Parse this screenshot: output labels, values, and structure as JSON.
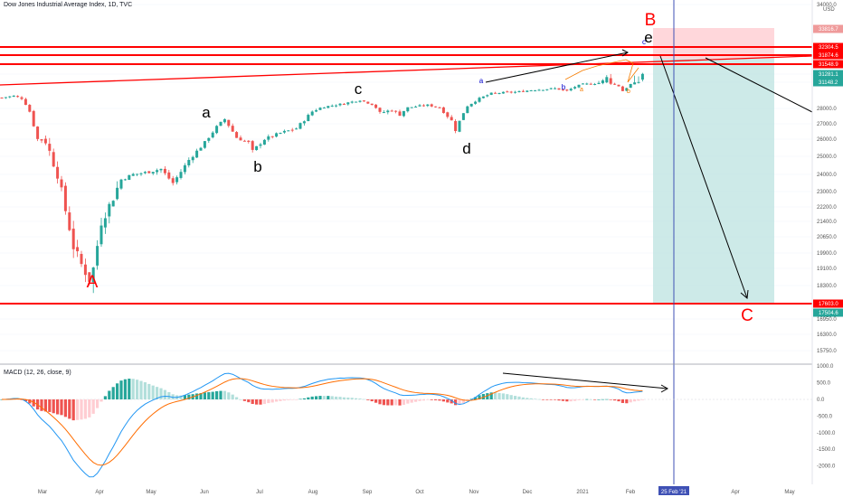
{
  "header": {
    "title": "Dow Jones Industrial Average Index, 1D, TVC",
    "currency": "USD"
  },
  "macd_panel": {
    "title": "MACD (12, 26, close, 9)"
  },
  "colors": {
    "up": "#26a69a",
    "down": "#ef5350",
    "macd_line": "#2196f3",
    "signal_line": "#ff6d00",
    "resistance": "#ff0000",
    "target_zone": "#b2dfdb",
    "stop_zone": "#ffcdd2",
    "date_line": "#3f51b5"
  },
  "chart_data": [
    {
      "type": "candlestick",
      "title": "Dow Jones Industrial Average Index, 1D, TVC",
      "y_ticks": [
        34000,
        32300,
        31281.1,
        31148.2,
        28000,
        27000,
        26000,
        25000,
        24000,
        23000,
        22200,
        21400,
        20650,
        19900,
        19100,
        18300,
        17600,
        16950,
        16300,
        15750
      ],
      "x_ticks": [
        "Mar",
        "Apr",
        "May",
        "Jun",
        "Jul",
        "Aug",
        "Sep",
        "Oct",
        "Nov",
        "Dec",
        "2021",
        "Feb",
        "25 Feb '21",
        "Apr",
        "May"
      ],
      "price_labels": [
        {
          "text": "33816.7",
          "value": 33816.7,
          "color": "#ef9a9a"
        },
        {
          "text": "32304.5",
          "value": 32304.5,
          "color": "#ff0000"
        },
        {
          "text": "31874.6",
          "value": 31874.6,
          "color": "#ff0000"
        },
        {
          "text": "31548.9",
          "value": 31548.9,
          "color": "#ff0000"
        },
        {
          "text": "31281.1",
          "value": 31281.1,
          "color": "#26a69a"
        },
        {
          "text": "31148.2",
          "value": 31148.2,
          "color": "#26a69a"
        },
        {
          "text": "17603.0",
          "value": 17603.0,
          "color": "#ff0000"
        },
        {
          "text": "17504.6",
          "value": 17504.6,
          "color": "#26a69a"
        }
      ],
      "horizontal_levels": [
        32304.5,
        31874.6,
        31548.9,
        17603.0
      ],
      "wave_labels": [
        {
          "text": "A",
          "color": "#ff0000",
          "size": "big"
        },
        {
          "text": "B",
          "color": "#ff0000",
          "size": "big"
        },
        {
          "text": "C",
          "color": "#ff0000",
          "size": "big"
        },
        {
          "text": "a",
          "color": "#000000",
          "size": "mid"
        },
        {
          "text": "b",
          "color": "#000000",
          "size": "mid"
        },
        {
          "text": "c",
          "color": "#000000",
          "size": "mid"
        },
        {
          "text": "d",
          "color": "#000000",
          "size": "mid"
        },
        {
          "text": "e",
          "color": "#000000",
          "size": "mid"
        },
        {
          "text": "a",
          "color": "#0000cc",
          "size": "small"
        },
        {
          "text": "b",
          "color": "#0000cc",
          "size": "small"
        },
        {
          "text": "c",
          "color": "#0000cc",
          "size": "small"
        },
        {
          "text": "a",
          "color": "#f57c00",
          "size": "tiny"
        },
        {
          "text": "b",
          "color": "#f57c00",
          "size": "tiny"
        }
      ],
      "waypoints": [
        [
          0,
          29300
        ],
        [
          3,
          29500
        ],
        [
          5,
          29200
        ],
        [
          7,
          27800
        ],
        [
          9,
          26000
        ],
        [
          11,
          25900
        ],
        [
          14,
          24000
        ],
        [
          16,
          22000
        ],
        [
          18,
          20200
        ],
        [
          20,
          19300
        ],
        [
          22,
          18600
        ],
        [
          23,
          19100
        ],
        [
          25,
          21400
        ],
        [
          28,
          22700
        ],
        [
          30,
          23700
        ],
        [
          33,
          24000
        ],
        [
          36,
          24100
        ],
        [
          40,
          24300
        ],
        [
          43,
          23500
        ],
        [
          47,
          24800
        ],
        [
          51,
          25800
        ],
        [
          54,
          26800
        ],
        [
          56,
          27300
        ],
        [
          59,
          26100
        ],
        [
          62,
          25800
        ],
        [
          63,
          25300
        ],
        [
          66,
          26000
        ],
        [
          70,
          26400
        ],
        [
          74,
          26700
        ],
        [
          78,
          27800
        ],
        [
          81,
          28200
        ],
        [
          85,
          28500
        ],
        [
          90,
          29000
        ],
        [
          93,
          28500
        ],
        [
          95,
          27700
        ],
        [
          98,
          27900
        ],
        [
          100,
          27600
        ],
        [
          102,
          28100
        ],
        [
          105,
          28300
        ],
        [
          107,
          28400
        ],
        [
          110,
          28100
        ],
        [
          113,
          27200
        ],
        [
          114,
          26600
        ],
        [
          117,
          28300
        ],
        [
          120,
          29200
        ],
        [
          123,
          29800
        ],
        [
          126,
          29900
        ],
        [
          130,
          30000
        ],
        [
          133,
          30200
        ],
        [
          136,
          30300
        ],
        [
          139,
          30400
        ],
        [
          142,
          30100
        ],
        [
          144,
          30600
        ],
        [
          146,
          30900
        ],
        [
          149,
          31000
        ],
        [
          152,
          31200
        ],
        [
          155,
          30700
        ],
        [
          156,
          30100
        ],
        [
          158,
          30900
        ],
        [
          161,
          31300
        ]
      ]
    },
    {
      "type": "bar",
      "title": "MACD (12, 26, close, 9)",
      "y_ticks": [
        1000,
        500,
        0,
        -500,
        -1000,
        -1500,
        -2000
      ],
      "series": [
        {
          "name": "MACD",
          "role": "line"
        },
        {
          "name": "Signal",
          "role": "line"
        },
        {
          "name": "Histogram",
          "role": "bars"
        }
      ]
    }
  ]
}
